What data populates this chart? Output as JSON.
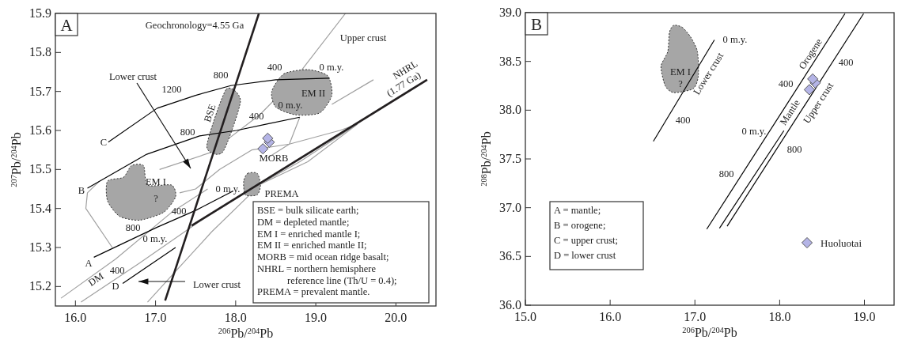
{
  "chart_data": [
    {
      "type": "scatter",
      "title": "A",
      "xlabel": "$^{206}$Pb/$^{204}$Pb",
      "ylabel": "$^{207}$Pb/$^{204}$Pb",
      "xlim": [
        15.75,
        20.5
      ],
      "ylim": [
        15.15,
        15.9
      ],
      "xticks": [
        {
          "value": 16,
          "label": "16.0"
        },
        {
          "value": 17,
          "label": "17.0"
        },
        {
          "value": 18,
          "label": "18.0"
        },
        {
          "value": 19,
          "label": "19.0"
        },
        {
          "value": 20,
          "label": "20.0"
        }
      ],
      "yticks": [
        15.2,
        15.3,
        15.4,
        15.5,
        15.6,
        15.7,
        15.8,
        15.9
      ],
      "series": [
        {
          "type": "line",
          "color": "#a0a0a0",
          "x": [
            15.82,
            16.5,
            17.2,
            17.65
          ],
          "values": [
            15.17,
            15.27,
            15.39,
            15.45
          ]
        },
        {
          "type": "line",
          "color": "#a0a0a0",
          "x": [
            16.07,
            16.8,
            17.5,
            18.2,
            18.8,
            19.52
          ],
          "values": [
            15.16,
            15.26,
            15.36,
            15.45,
            15.52,
            15.616
          ]
        },
        {
          "type": "line",
          "color": "#a0a0a0",
          "x": [
            16.9,
            17.3,
            17.7,
            18.31,
            18.9,
            19.52,
            19.3,
            18.67,
            18.2,
            17.8,
            17.5,
            17.3
          ],
          "values": [
            15.16,
            15.25,
            15.34,
            15.462,
            15.52,
            15.616,
            15.6,
            15.565,
            15.55,
            15.5,
            15.45,
            15.44
          ]
        },
        {
          "type": "line",
          "color": "#a0a0a0",
          "x": [
            17.05,
            17.68,
            18.3,
            18.73,
            19.37
          ],
          "values": [
            15.5,
            15.543,
            15.64,
            15.73,
            15.9
          ]
        },
        {
          "type": "line",
          "color": "#a0a0a0",
          "x": [
            19.2,
            19.72
          ],
          "values": [
            15.667,
            15.73
          ]
        },
        {
          "type": "line",
          "color": "#a0a0a0",
          "x": [
            18.8,
            18.67,
            18.4
          ],
          "values": [
            15.634,
            15.565,
            15.53
          ]
        },
        {
          "type": "line",
          "color": "#a0a0a0",
          "x": [
            16.3,
            16.15,
            16.13,
            16.46
          ],
          "values": [
            15.47,
            15.44,
            15.4,
            15.3
          ]
        },
        {
          "type": "area",
          "color": "#a6a6a6",
          "line_style": "dotted",
          "x": [
            16.4,
            16.6,
            16.7,
            16.85,
            16.9,
            17.2,
            17.25,
            17.1,
            16.8,
            16.55,
            16.4
          ],
          "values": [
            15.47,
            15.48,
            15.51,
            15.51,
            15.46,
            15.46,
            15.43,
            15.39,
            15.37,
            15.38,
            15.42
          ]
        },
        {
          "type": "area",
          "color": "#a6a6a6",
          "line_style": "dotted",
          "x": [
            17.64,
            17.88,
            18.06,
            17.84
          ],
          "values": [
            15.56,
            15.705,
            15.675,
            15.545
          ]
        },
        {
          "type": "area",
          "color": "#a6a6a6",
          "line_style": "dotted",
          "x": [
            18.45,
            18.6,
            18.9,
            19.15,
            19.2,
            19.05,
            18.75,
            18.5
          ],
          "values": [
            15.7,
            15.745,
            15.756,
            15.74,
            15.69,
            15.645,
            15.64,
            15.66
          ]
        },
        {
          "type": "area",
          "color": "#a6a6a6",
          "line_style": "dotted",
          "x": [
            18.1,
            18.15,
            18.27,
            18.31,
            18.27,
            18.12
          ],
          "values": [
            15.47,
            15.49,
            15.49,
            15.46,
            15.435,
            15.435
          ]
        },
        {
          "type": "line",
          "color": "#000000",
          "x": [
            16.41,
            17.02,
            17.5,
            17.94,
            18.5,
            19.17
          ],
          "values": [
            15.57,
            15.657,
            15.69,
            15.715,
            15.73,
            15.734
          ]
        },
        {
          "type": "line",
          "color": "#000000",
          "x": [
            16.15,
            16.89,
            17.55,
            18.01,
            18.4,
            18.8
          ],
          "values": [
            15.452,
            15.539,
            15.586,
            15.6,
            15.617,
            15.634
          ]
        },
        {
          "type": "line",
          "color": "#000000",
          "x": [
            16.23,
            17.02,
            17.5,
            17.97
          ],
          "values": [
            15.275,
            15.352,
            15.395,
            15.445
          ]
        },
        {
          "type": "line",
          "color": "#000000",
          "x": [
            16.59,
            17.25
          ],
          "values": [
            15.208,
            15.3
          ]
        },
        {
          "type": "line",
          "color": "#231f20",
          "x": [
            17.12,
            18.29
          ],
          "values": [
            15.164,
            15.9
          ]
        },
        {
          "type": "line",
          "color": "#231f20",
          "x": [
            17.45,
            20.39
          ],
          "values": [
            15.356,
            15.73
          ]
        },
        {
          "color": "#b4b4e6",
          "marker": "diamond",
          "x": [
            18.34,
            18.42,
            18.4
          ],
          "values": [
            15.553,
            15.57,
            15.58
          ]
        }
      ],
      "annotations": [
        "Geochronology=4.55 Ga",
        "Upper crust",
        "NHRL",
        "(1.77 Ga)",
        "Lower crust",
        "Lower crust",
        "1200",
        "800",
        "400",
        "0 m.y.",
        "C",
        "800",
        "400",
        "0 m.y.",
        "EM II",
        "BSE",
        "B",
        "EM I",
        "?",
        "0 m.y.",
        "400",
        "800",
        "0 m.y.",
        "A",
        "DM",
        "400",
        "D",
        "MORB",
        "PREMA",
        "BSE = bulk silicate earth;",
        "DM = depleted mantle;",
        "EM I = enriched mantle I;",
        "EM II = enriched mantle II;",
        "MORB = mid ocean ridge basalt;",
        "NHRL = northern hemisphere",
        "reference line (Th/U = 0.4);",
        "PREMA = prevalent mantle."
      ]
    },
    {
      "type": "scatter",
      "title": "B",
      "xlabel": "$^{206}$Pb/$^{204}$Pb",
      "ylabel": "$^{208}$Pb/$^{204}$Pb",
      "xlim": [
        15,
        19.35
      ],
      "ylim": [
        36,
        39
      ],
      "legend": "bottom right",
      "xticks": [
        {
          "value": 15,
          "label": "15.0"
        },
        {
          "value": 16,
          "label": "16.0"
        },
        {
          "value": 17,
          "label": "17.0"
        },
        {
          "value": 18,
          "label": "18.0"
        },
        {
          "value": 19,
          "label": "19.0"
        }
      ],
      "yticks": [
        {
          "value": 36,
          "label": "36.0"
        },
        36.5,
        {
          "value": 37,
          "label": "37.0"
        },
        37.5,
        {
          "value": 38,
          "label": "38.0"
        },
        38.5,
        {
          "value": 39,
          "label": "39.0"
        }
      ],
      "series": [
        {
          "type": "area",
          "color": "#a6a6a6",
          "line_style": "dotted",
          "x": [
            16.75,
            16.85,
            16.95,
            17.03,
            17.04,
            16.98,
            16.75,
            16.65,
            16.6,
            16.68,
            16.7
          ],
          "values": [
            38.87,
            38.85,
            38.75,
            38.6,
            38.35,
            38.22,
            38.18,
            38.25,
            38.45,
            38.6,
            38.8
          ]
        },
        {
          "type": "line",
          "color": "#000000",
          "x": [
            16.51,
            17.23
          ],
          "values": [
            37.68,
            38.72
          ]
        },
        {
          "type": "line",
          "color": "#000000",
          "x": [
            17.14,
            18.77
          ],
          "values": [
            36.78,
            38.99
          ]
        },
        {
          "type": "line",
          "color": "#000000",
          "x": [
            17.29,
            18.05
          ],
          "values": [
            36.79,
            37.79
          ]
        },
        {
          "type": "line",
          "color": "#000000",
          "x": [
            17.38,
            18.99
          ],
          "values": [
            36.81,
            38.99
          ]
        },
        {
          "name": "Huoluotai",
          "color": "#b4b4e6",
          "marker": "diamond",
          "x": [
            18.35,
            18.42,
            18.39
          ],
          "values": [
            38.21,
            38.28,
            38.32
          ]
        }
      ],
      "annotations": [
        "EM I",
        "?",
        "0 m.y.",
        "Lower crust",
        "400",
        "Orogene",
        "400",
        "Mantle",
        "0 m.y.",
        "Upper crust",
        "400",
        "800",
        "800",
        "A = mantle;",
        "B = orogene;",
        "C = upper crust;",
        "D = lower crust"
      ]
    }
  ]
}
